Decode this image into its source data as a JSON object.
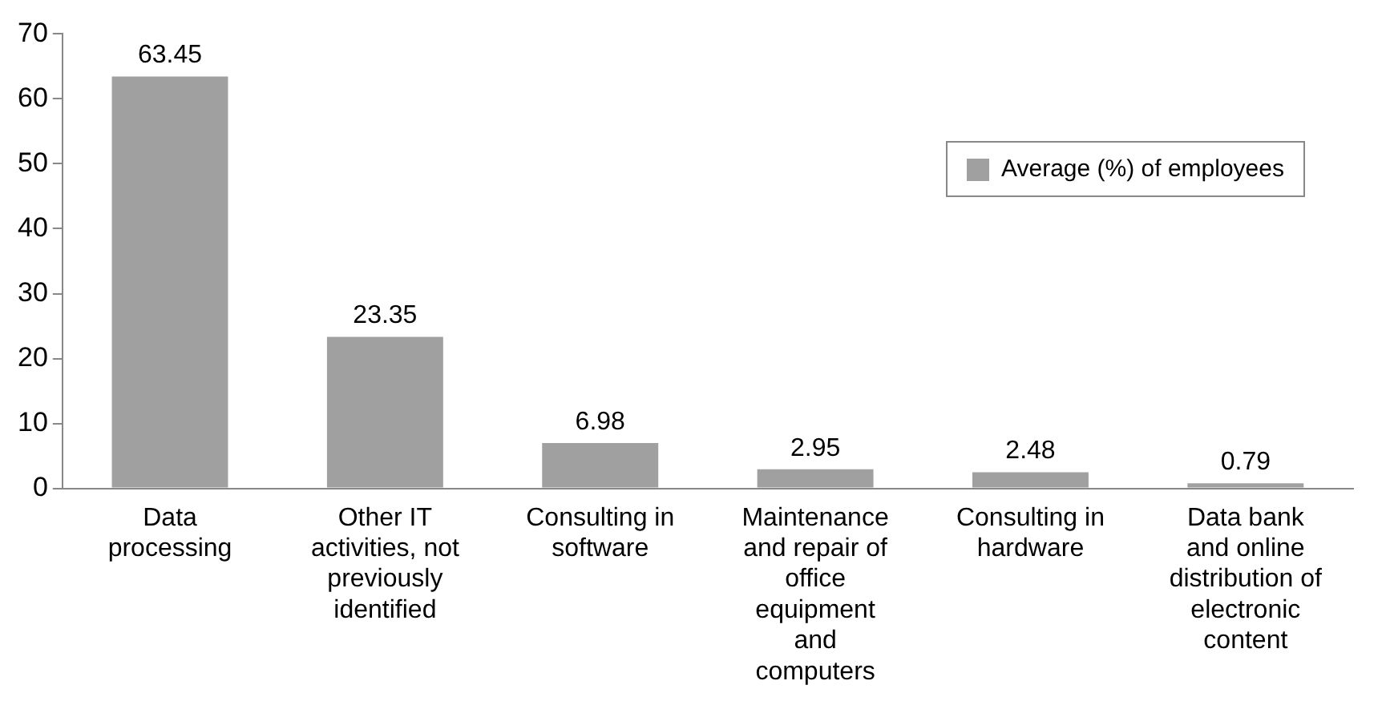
{
  "chart_data": {
    "type": "bar",
    "categories": [
      "Data processing",
      "Other IT activities, not previously identified",
      "Consulting in software",
      "Maintenance and repair of office equipment and computers",
      "Consulting in hardware",
      "Data bank and online distribution of electronic content"
    ],
    "series": [
      {
        "name": "Average (%) of employees",
        "color": "#a0a0a0",
        "values": [
          63.45,
          23.35,
          6.98,
          2.95,
          2.48,
          0.79
        ]
      }
    ],
    "ylim": [
      0,
      70
    ],
    "yticks": [
      0,
      10,
      20,
      30,
      40,
      50,
      60,
      70
    ],
    "grid": false,
    "legend": "top right",
    "data_labels": true
  }
}
